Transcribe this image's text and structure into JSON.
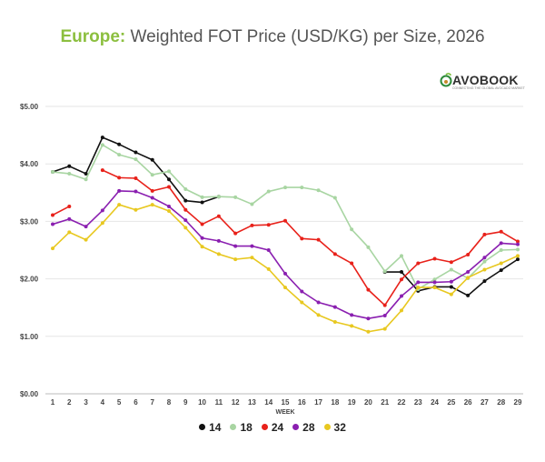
{
  "title": {
    "region": "Europe:",
    "text": "Weighted FOT Price (USD/KG) per Size, 2026"
  },
  "logo": {
    "name": "AVOBOOK",
    "tagline": "CONNECTING THE GLOBAL AVOCADO MARKET"
  },
  "chart_data": {
    "type": "line",
    "title": "Europe: Weighted FOT Price (USD/KG) per Size, 2026",
    "xlabel": "WEEK",
    "ylabel": "",
    "x": [
      1,
      2,
      3,
      4,
      5,
      6,
      7,
      8,
      9,
      10,
      11,
      12,
      13,
      14,
      15,
      16,
      17,
      18,
      19,
      20,
      21,
      22,
      23,
      24,
      25,
      26,
      27,
      28,
      29
    ],
    "ylim": [
      0,
      5
    ],
    "yticks": [
      "$0.00",
      "$1.00",
      "$2.00",
      "$3.00",
      "$4.00",
      "$5.00"
    ],
    "grid": true,
    "legend_position": "bottom",
    "series": [
      {
        "name": "14",
        "color": "#111111",
        "values": [
          3.86,
          3.96,
          3.83,
          4.46,
          4.34,
          4.2,
          4.07,
          3.73,
          3.36,
          3.33,
          3.43,
          null,
          null,
          null,
          null,
          null,
          null,
          null,
          null,
          null,
          2.12,
          2.12,
          1.79,
          1.86,
          1.86,
          1.71,
          1.96,
          2.15,
          2.34
        ]
      },
      {
        "name": "18",
        "color": "#a8d5a2",
        "values": [
          3.86,
          3.83,
          3.73,
          4.33,
          4.16,
          4.08,
          3.81,
          3.87,
          3.56,
          3.42,
          3.43,
          3.42,
          3.3,
          3.52,
          3.59,
          3.59,
          3.54,
          3.41,
          2.86,
          2.55,
          2.13,
          2.4,
          1.82,
          1.99,
          2.16,
          2.01,
          2.3,
          2.5,
          2.51
        ]
      },
      {
        "name": "24",
        "color": "#e8211a",
        "values": [
          3.11,
          3.26,
          null,
          3.89,
          3.76,
          3.75,
          3.53,
          3.6,
          3.2,
          2.95,
          3.09,
          2.79,
          2.93,
          2.94,
          3.01,
          2.7,
          2.68,
          2.43,
          2.27,
          1.81,
          1.54,
          1.99,
          2.27,
          2.35,
          2.29,
          2.42,
          2.77,
          2.82,
          2.65
        ]
      },
      {
        "name": "28",
        "color": "#8a1fb0",
        "values": [
          2.95,
          3.04,
          2.91,
          3.19,
          3.53,
          3.52,
          3.41,
          3.26,
          3.02,
          2.71,
          2.66,
          2.57,
          2.57,
          2.5,
          2.09,
          1.78,
          1.59,
          1.51,
          1.37,
          1.31,
          1.36,
          1.7,
          1.94,
          1.94,
          1.95,
          2.12,
          2.37,
          2.62,
          2.6
        ]
      },
      {
        "name": "32",
        "color": "#e8c820",
        "values": [
          2.53,
          2.81,
          2.68,
          2.97,
          3.29,
          3.2,
          3.29,
          3.18,
          2.89,
          2.56,
          2.43,
          2.34,
          2.37,
          2.17,
          1.85,
          1.59,
          1.37,
          1.25,
          1.18,
          1.08,
          1.13,
          1.45,
          1.85,
          1.85,
          1.73,
          2.02,
          2.16,
          2.27,
          2.4
        ]
      }
    ]
  }
}
